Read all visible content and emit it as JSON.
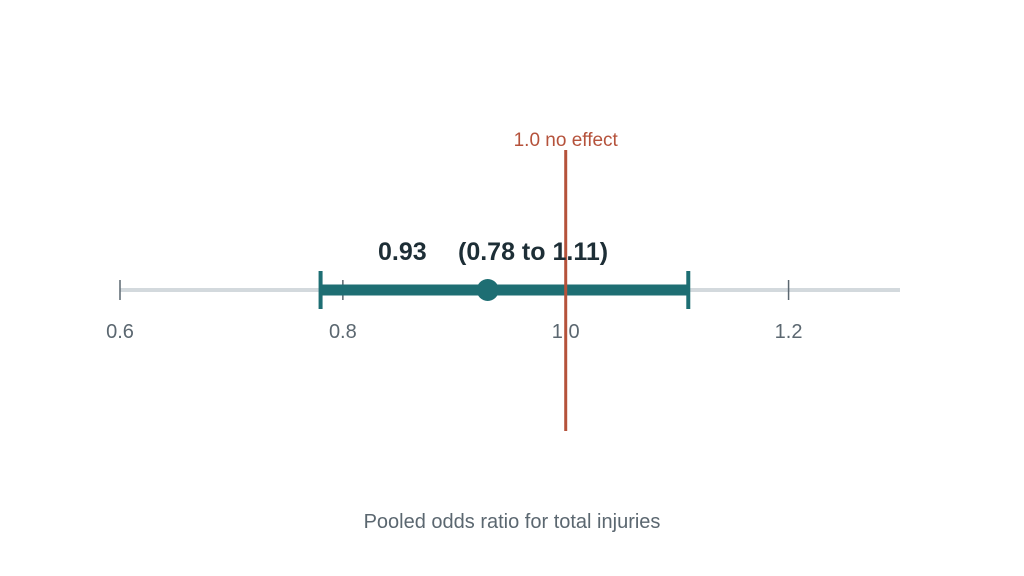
{
  "chart_data": {
    "type": "scatter",
    "xlabel": "Pooled odds ratio for total injuries",
    "xlim": [
      0.6,
      1.3
    ],
    "ticks": [
      0.6,
      0.8,
      1.0,
      1.2
    ],
    "tick_labels": [
      "0.6",
      "0.8",
      "1.0",
      "1.2"
    ],
    "estimate": 0.93,
    "ci_low": 0.78,
    "ci_high": 1.11,
    "estimate_label": "0.93",
    "ci_label": "(0.78 to 1.11)",
    "reference_value": 1.0,
    "reference_label": "1.0  no effect",
    "colors": {
      "estimate": "#1e6e73",
      "reference": "#b5523b",
      "axis": "#d3d9dd",
      "tick": "#5b6770",
      "label": "#1d2e36"
    }
  }
}
